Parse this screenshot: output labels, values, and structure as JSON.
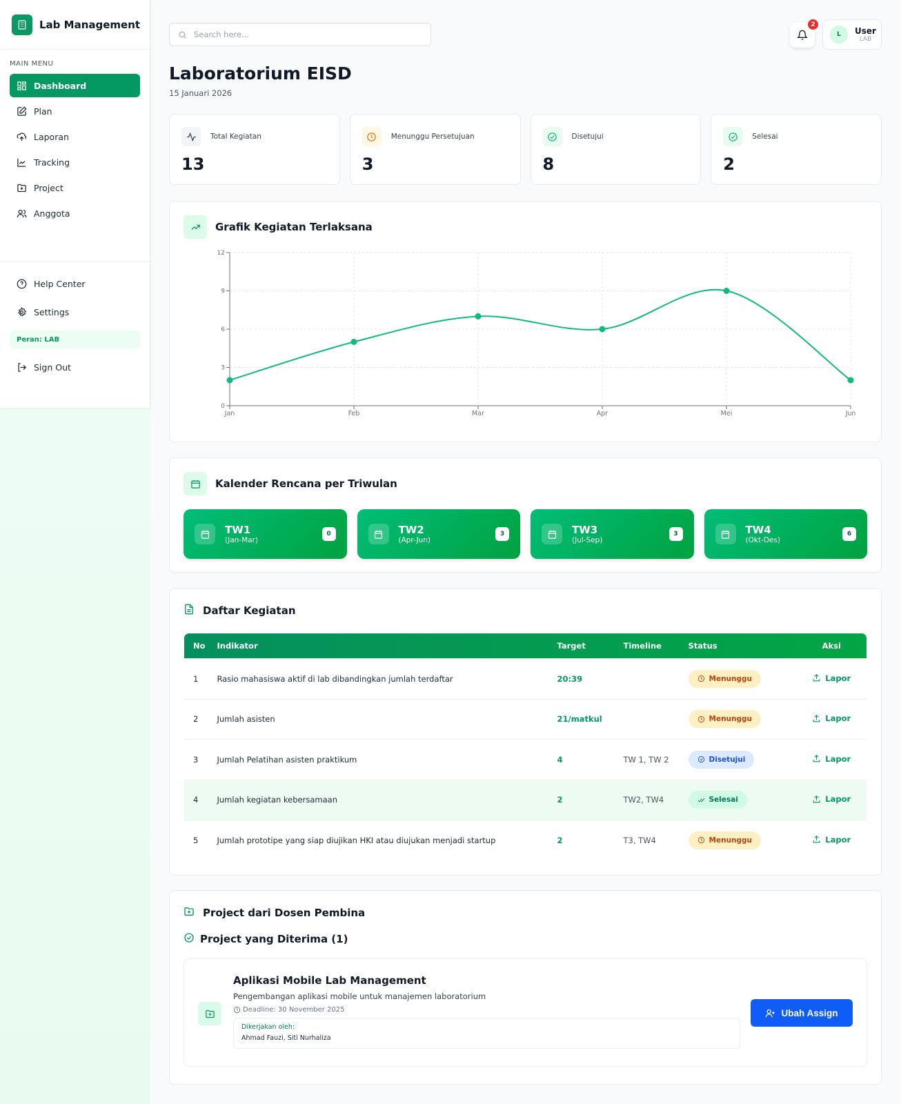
{
  "app": {
    "name": "Lab Management",
    "menu_title": "MAIN MENU",
    "role": "Peran: LAB"
  },
  "sidebar": {
    "items": [
      {
        "label": "Dashboard",
        "icon": "grid-icon"
      },
      {
        "label": "Plan",
        "icon": "edit-icon"
      },
      {
        "label": "Laporan",
        "icon": "upload-cloud-icon"
      },
      {
        "label": "Tracking",
        "icon": "line-chart-icon"
      },
      {
        "label": "Project",
        "icon": "folder-plus-icon"
      },
      {
        "label": "Anggota",
        "icon": "users-icon"
      }
    ],
    "bottom": [
      {
        "label": "Help Center"
      },
      {
        "label": "Settings"
      }
    ],
    "signout": "Sign Out"
  },
  "header": {
    "search_placeholder": "Search here...",
    "notif_count": "2",
    "user_initial": "L",
    "user_name": "User",
    "user_role": "LAB"
  },
  "page": {
    "title": "Laboratorium EISD",
    "date": "15 Januari 2026"
  },
  "stats": [
    {
      "label": "Total Kegiatan",
      "value": "13"
    },
    {
      "label": "Menunggu Persetujuan",
      "value": "3"
    },
    {
      "label": "Disetujui",
      "value": "8"
    },
    {
      "label": "Selesai",
      "value": "2"
    }
  ],
  "chart_data": {
    "type": "line",
    "title": "Grafik Kegiatan Terlaksana",
    "categories": [
      "Jan",
      "Feb",
      "Mar",
      "Apr",
      "Mei",
      "Jun"
    ],
    "values": [
      2,
      5,
      7,
      6,
      9,
      2
    ],
    "yticks": [
      0,
      3,
      6,
      9,
      12
    ],
    "ylim": [
      0,
      12
    ],
    "grid": true,
    "color": "#10b981"
  },
  "calendar": {
    "title": "Kalender Rencana per Triwulan",
    "quarters": [
      {
        "name": "TW1",
        "range": "(Jan-Mar)",
        "count": "0"
      },
      {
        "name": "TW2",
        "range": "(Apr-Jun)",
        "count": "3"
      },
      {
        "name": "TW3",
        "range": "(Jul-Sep)",
        "count": "3"
      },
      {
        "name": "TW4",
        "range": "(Okt-Des)",
        "count": "6"
      }
    ]
  },
  "kegiatan": {
    "title": "Daftar Kegiatan",
    "columns": [
      "No",
      "Indikator",
      "Target",
      "Timeline",
      "Status",
      "Aksi"
    ],
    "rows": [
      {
        "no": "1",
        "indikator": "Rasio mahasiswa aktif di lab dibandingkan jumlah terdaftar",
        "target": "20:39",
        "timeline": "",
        "status": "Menunggu",
        "action": "Lapor"
      },
      {
        "no": "2",
        "indikator": "Jumlah asisten",
        "target": "21/matkul",
        "timeline": "",
        "status": "Menunggu",
        "action": "Lapor"
      },
      {
        "no": "3",
        "indikator": "Jumlah Pelatihan asisten praktikum",
        "target": "4",
        "timeline": "TW 1, TW 2",
        "status": "Disetujui",
        "action": "Lapor"
      },
      {
        "no": "4",
        "indikator": "Jumlah kegiatan kebersamaan",
        "target": "2",
        "timeline": "TW2, TW4",
        "status": "Selesai",
        "action": "Lapor"
      },
      {
        "no": "5",
        "indikator": "Jumlah prototipe yang siap diujikan HKI atau diujukan menjadi startup",
        "target": "2",
        "timeline": "T3, TW4",
        "status": "Menunggu",
        "action": "Lapor"
      }
    ]
  },
  "project": {
    "title": "Project dari Dosen Pembina",
    "subtitle": "Project yang Diterima (1)",
    "name": "Aplikasi Mobile Lab Management",
    "desc": "Pengembangan aplikasi mobile untuk manajemen laboratorium",
    "deadline": "Deadline: 30 November 2025",
    "worked_label": "Dikerjakan oleh:",
    "workers": "Ahmad Fauzi, Siti Nurhaliza",
    "button": "Ubah Assign"
  }
}
